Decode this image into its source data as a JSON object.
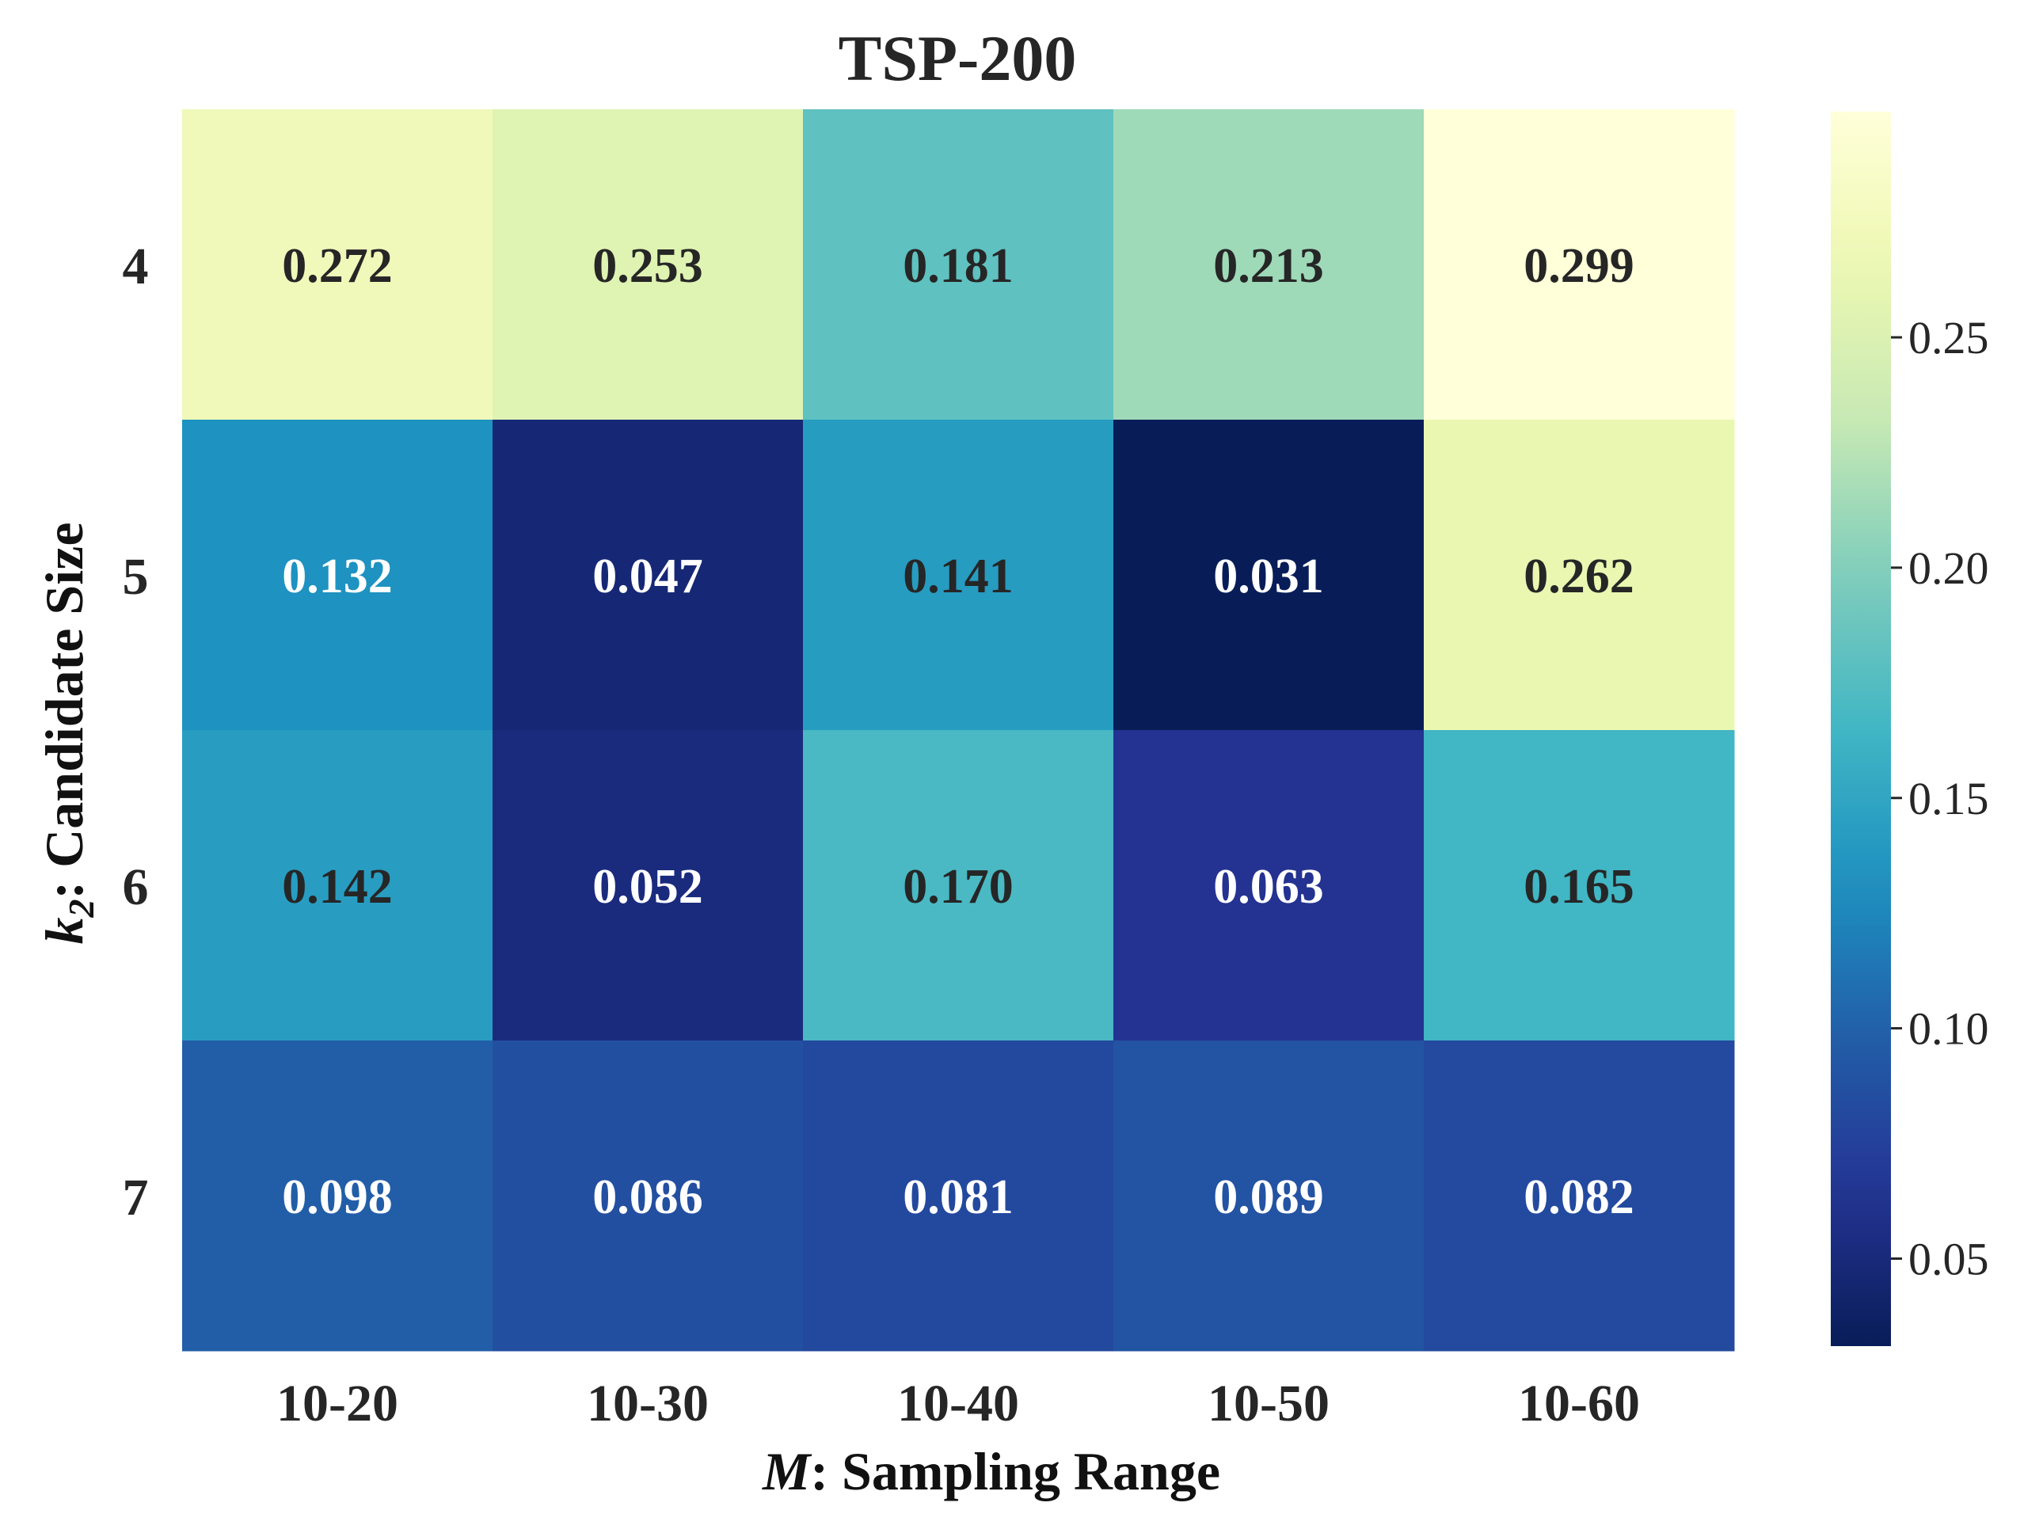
{
  "chart_data": {
    "type": "heatmap",
    "title": "TSP-200",
    "xlabel_var": "M",
    "xlabel_rest": ": Sampling Range",
    "ylabel_var": "k",
    "ylabel_sub": "2",
    "ylabel_rest": ": Candidate Size",
    "x_categories": [
      "10-20",
      "10-30",
      "10-40",
      "10-50",
      "10-60"
    ],
    "y_categories": [
      "4",
      "5",
      "6",
      "7"
    ],
    "values": [
      [
        0.272,
        0.253,
        0.181,
        0.213,
        0.299
      ],
      [
        0.132,
        0.047,
        0.141,
        0.031,
        0.262
      ],
      [
        0.142,
        0.052,
        0.17,
        0.063,
        0.165
      ],
      [
        0.098,
        0.086,
        0.081,
        0.089,
        0.082
      ]
    ],
    "value_format": "0.000",
    "colormap": "YlGnBu",
    "color_range": [
      0.031,
      0.299
    ],
    "colorbar_ticks": [
      0.05,
      0.1,
      0.15,
      0.2,
      0.25
    ],
    "colorbar_tick_labels": [
      "0.05",
      "0.10",
      "0.15",
      "0.20",
      "0.25"
    ]
  }
}
